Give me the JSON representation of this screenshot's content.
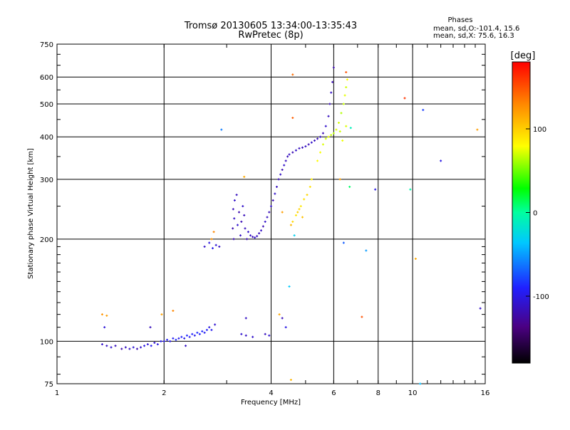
{
  "chart_data": {
    "type": "scatter",
    "title": "Tromsø 20130605 13:34:00-13:35:43",
    "subtitle": "RwPretec (8p)",
    "xlabel": "Frequency [MHz]",
    "ylabel": "Stationary phase Virtual Height [km]",
    "x_scale": "log",
    "y_scale": "log",
    "xlim": [
      1,
      16
    ],
    "ylim": [
      75,
      750
    ],
    "x_ticks": [
      1,
      2,
      4,
      6,
      8,
      10,
      16
    ],
    "x_tick_labels": [
      "1",
      "2",
      "4",
      "6",
      "8",
      "10",
      "16"
    ],
    "y_ticks": [
      75,
      100,
      200,
      300,
      400,
      500,
      600,
      750
    ],
    "y_tick_labels": [
      "75",
      "100",
      "200",
      "300",
      "400",
      "500",
      "600",
      "750"
    ],
    "grid": true,
    "phases_box": {
      "heading": "Phases",
      "line_o": "mean, sd,O:-101.4, 15.6",
      "line_x": "mean, sd,X:  75.6, 16.3"
    },
    "colorbar": {
      "unit": "[deg]",
      "range": [
        -180,
        180
      ],
      "ticks": [
        100,
        0,
        -100
      ],
      "tick_labels": [
        "100",
        "0",
        "-100"
      ]
    },
    "series": [
      {
        "mode": "O",
        "points": [
          [
            1.34,
            98,
            -110
          ],
          [
            1.38,
            97,
            -112
          ],
          [
            1.42,
            96,
            -108
          ],
          [
            1.46,
            97,
            -115
          ],
          [
            1.36,
            110,
            -105
          ],
          [
            1.52,
            95,
            -120
          ],
          [
            1.56,
            96,
            -112
          ],
          [
            1.6,
            95,
            -110
          ],
          [
            1.64,
            96,
            -105
          ],
          [
            1.68,
            95,
            -118
          ],
          [
            1.72,
            96,
            -110
          ],
          [
            1.76,
            97,
            -100
          ],
          [
            1.8,
            98,
            -105
          ],
          [
            1.84,
            97,
            -95
          ],
          [
            1.88,
            99,
            -108
          ],
          [
            1.92,
            98,
            -100
          ],
          [
            1.96,
            100,
            -96
          ],
          [
            2.0,
            100,
            -98
          ],
          [
            2.04,
            101,
            -92
          ],
          [
            2.08,
            100,
            -100
          ],
          [
            2.12,
            102,
            -94
          ],
          [
            2.16,
            101,
            -88
          ],
          [
            2.2,
            102,
            -96
          ],
          [
            2.24,
            103,
            -90
          ],
          [
            2.28,
            102,
            -100
          ],
          [
            2.32,
            104,
            -88
          ],
          [
            2.36,
            103,
            -95
          ],
          [
            2.4,
            105,
            -90
          ],
          [
            2.44,
            104,
            -98
          ],
          [
            2.48,
            106,
            -86
          ],
          [
            2.52,
            105,
            -92
          ],
          [
            2.56,
            107,
            -88
          ],
          [
            2.6,
            106,
            -95
          ],
          [
            2.64,
            108,
            -90
          ],
          [
            2.68,
            110,
            -102
          ],
          [
            2.72,
            108,
            -96
          ],
          [
            2.78,
            112,
            -108
          ],
          [
            1.83,
            110,
            -115
          ],
          [
            2.3,
            97,
            -112
          ],
          [
            2.6,
            190,
            -110
          ],
          [
            2.68,
            195,
            -102
          ],
          [
            2.74,
            188,
            -98
          ],
          [
            2.8,
            192,
            -105
          ],
          [
            2.86,
            190,
            -112
          ],
          [
            3.14,
            200,
            -118
          ],
          [
            3.12,
            215,
            -120
          ],
          [
            3.15,
            230,
            -112
          ],
          [
            3.13,
            245,
            -116
          ],
          [
            3.16,
            260,
            -110
          ],
          [
            3.2,
            270,
            -114
          ],
          [
            3.25,
            240,
            -120
          ],
          [
            3.22,
            220,
            -108
          ],
          [
            3.28,
            205,
            -112
          ],
          [
            3.3,
            225,
            -118
          ],
          [
            3.33,
            250,
            -110
          ],
          [
            3.36,
            235,
            -116
          ],
          [
            3.38,
            215,
            -114
          ],
          [
            3.42,
            200,
            -120
          ],
          [
            3.45,
            210,
            -110
          ],
          [
            3.5,
            205,
            -112
          ],
          [
            3.55,
            203,
            -118
          ],
          [
            3.6,
            202,
            -110
          ],
          [
            3.65,
            204,
            -114
          ],
          [
            3.7,
            208,
            -116
          ],
          [
            3.75,
            212,
            -112
          ],
          [
            3.8,
            218,
            -118
          ],
          [
            3.85,
            225,
            -110
          ],
          [
            3.9,
            232,
            -114
          ],
          [
            3.95,
            240,
            -116
          ],
          [
            4.0,
            250,
            -112
          ],
          [
            4.05,
            260,
            -118
          ],
          [
            4.1,
            272,
            -110
          ],
          [
            4.15,
            285,
            -114
          ],
          [
            4.2,
            300,
            -116
          ],
          [
            4.25,
            310,
            -112
          ],
          [
            4.3,
            320,
            -118
          ],
          [
            4.35,
            330,
            -110
          ],
          [
            4.4,
            340,
            -114
          ],
          [
            4.45,
            350,
            -116
          ],
          [
            4.5,
            355,
            -112
          ],
          [
            4.6,
            360,
            -118
          ],
          [
            4.7,
            365,
            -110
          ],
          [
            4.8,
            370,
            -114
          ],
          [
            4.9,
            372,
            -116
          ],
          [
            5.0,
            375,
            -112
          ],
          [
            5.1,
            380,
            -118
          ],
          [
            5.2,
            385,
            -110
          ],
          [
            5.3,
            390,
            -114
          ],
          [
            5.4,
            395,
            -116
          ],
          [
            5.5,
            400,
            -112
          ],
          [
            5.6,
            410,
            -118
          ],
          [
            5.7,
            430,
            -110
          ],
          [
            5.8,
            460,
            -114
          ],
          [
            5.85,
            500,
            -116
          ],
          [
            5.9,
            540,
            -112
          ],
          [
            5.95,
            580,
            -118
          ],
          [
            6.0,
            640,
            -120
          ],
          [
            3.3,
            105,
            -108
          ],
          [
            3.4,
            104,
            -112
          ],
          [
            3.55,
            103,
            -110
          ],
          [
            3.85,
            105,
            -114
          ],
          [
            3.95,
            104,
            -108
          ],
          [
            4.3,
            117,
            -116
          ],
          [
            3.4,
            117,
            -112
          ]
        ]
      },
      {
        "mode": "X",
        "points": [
          [
            4.6,
            225,
            95
          ],
          [
            4.7,
            235,
            90
          ],
          [
            4.8,
            245,
            98
          ],
          [
            4.85,
            250,
            88
          ],
          [
            4.95,
            262,
            92
          ],
          [
            5.05,
            270,
            96
          ],
          [
            5.2,
            300,
            85
          ],
          [
            5.4,
            340,
            80
          ],
          [
            5.5,
            360,
            78
          ],
          [
            5.6,
            380,
            72
          ],
          [
            5.7,
            395,
            70
          ],
          [
            5.8,
            400,
            75
          ],
          [
            5.9,
            405,
            68
          ],
          [
            6.0,
            410,
            66
          ],
          [
            6.1,
            420,
            72
          ],
          [
            6.2,
            440,
            70
          ],
          [
            6.3,
            470,
            64
          ],
          [
            6.4,
            500,
            68
          ],
          [
            6.45,
            530,
            74
          ],
          [
            6.5,
            560,
            70
          ],
          [
            6.55,
            590,
            80
          ],
          [
            6.5,
            430,
            72
          ],
          [
            6.35,
            390,
            76
          ],
          [
            6.25,
            415,
            70
          ],
          [
            4.75,
            240,
            100
          ],
          [
            4.9,
            232,
            105
          ],
          [
            4.55,
            220,
            110
          ],
          [
            5.15,
            285,
            92
          ],
          [
            2.76,
            210,
            130
          ],
          [
            2.72,
            200,
            125
          ],
          [
            1.34,
            120,
            125
          ],
          [
            1.38,
            119,
            120
          ],
          [
            2.12,
            123,
            130
          ],
          [
            4.6,
            610,
            140
          ],
          [
            4.6,
            455,
            145
          ],
          [
            4.3,
            240,
            120
          ],
          [
            6.25,
            300,
            120
          ],
          [
            6.5,
            620,
            150
          ],
          [
            9.5,
            520,
            160
          ],
          [
            10.2,
            175,
            115
          ],
          [
            15.2,
            420,
            120
          ],
          [
            7.2,
            118,
            150
          ],
          [
            3.36,
            305,
            115
          ],
          [
            4.55,
            77,
            110
          ],
          [
            1.97,
            120,
            118
          ],
          [
            4.22,
            120,
            116
          ]
        ]
      },
      {
        "mode": "other",
        "points": [
          [
            2.9,
            420,
            -60
          ],
          [
            4.65,
            205,
            -30
          ],
          [
            4.5,
            145,
            -35
          ],
          [
            6.65,
            285,
            10
          ],
          [
            6.7,
            425,
            -10
          ],
          [
            7.4,
            185,
            -50
          ],
          [
            7.85,
            280,
            -100
          ],
          [
            9.85,
            280,
            -5
          ],
          [
            10.5,
            75,
            -40
          ],
          [
            10.7,
            480,
            -80
          ],
          [
            12.0,
            340,
            -100
          ],
          [
            15.5,
            125,
            -110
          ],
          [
            6.4,
            195,
            -70
          ],
          [
            4.4,
            110,
            -100
          ]
        ]
      }
    ]
  }
}
